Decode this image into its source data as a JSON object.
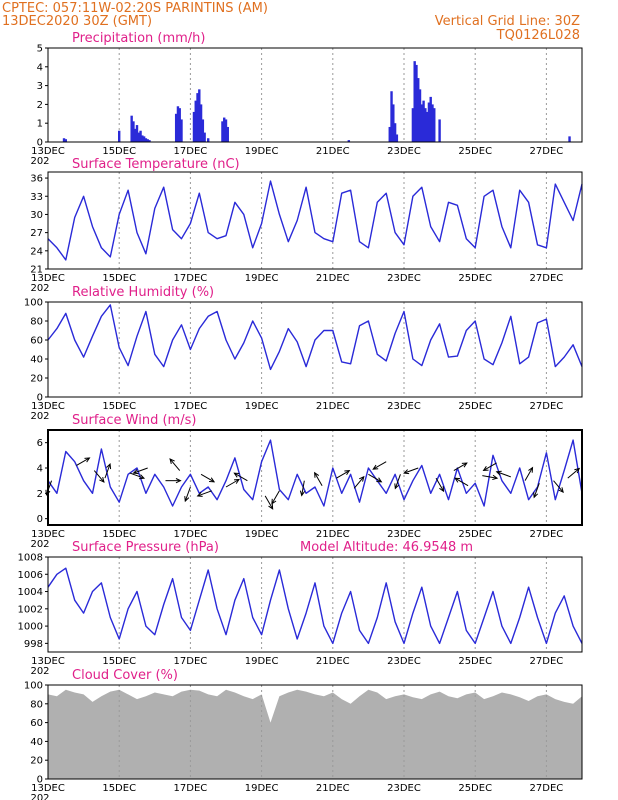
{
  "header": {
    "line1_left": "CPTEC:   057:11W-02:20S   PARINTINS (AM)",
    "line2_left": "13DEC2020 30Z (GMT)",
    "line1_right": "Vertical Grid Line: 30Z",
    "line2_right": "TQ0126L028"
  },
  "model_altitude": "Model Altitude: 46.9548 m",
  "colors": {
    "header": "#e07020",
    "title": "#e0208a",
    "series": "#2a2ad8",
    "cloud": "#b0b0b0",
    "wind_arrow": "#000000"
  },
  "x_axis": {
    "tick_labels": [
      "13DEC",
      "15DEC",
      "17DEC",
      "19DEC",
      "21DEC",
      "23DEC",
      "25DEC",
      "27DEC"
    ],
    "stub_label": "202",
    "range_days": [
      0,
      15.0
    ]
  },
  "chart_data": [
    {
      "type": "bar",
      "title": "Precipitation (mm/h)",
      "ylim": [
        0,
        5
      ],
      "yticks": [
        "0",
        "1",
        "2",
        "3",
        "4",
        "5"
      ],
      "x_days": [
        0.45,
        0.5,
        2.0,
        2.35,
        2.4,
        2.45,
        2.5,
        2.55,
        2.6,
        2.65,
        2.7,
        2.75,
        2.8,
        2.85,
        3.6,
        3.65,
        3.7,
        3.75,
        4.1,
        4.15,
        4.2,
        4.25,
        4.3,
        4.35,
        4.4,
        4.5,
        4.9,
        4.95,
        5.0,
        5.05,
        8.45,
        9.6,
        9.65,
        9.7,
        9.75,
        9.8,
        10.25,
        10.3,
        10.35,
        10.4,
        10.45,
        10.5,
        10.55,
        10.6,
        10.65,
        10.7,
        10.75,
        10.8,
        10.85,
        11.0,
        14.65
      ],
      "values": [
        0.2,
        0.15,
        0.6,
        1.4,
        1.1,
        0.7,
        0.9,
        0.5,
        0.6,
        0.35,
        0.3,
        0.2,
        0.15,
        0.1,
        1.5,
        1.9,
        1.8,
        1.2,
        1.6,
        2.2,
        2.6,
        2.8,
        2.0,
        1.2,
        0.5,
        0.2,
        1.1,
        1.3,
        1.2,
        0.8,
        0.1,
        0.8,
        2.7,
        2.0,
        1.0,
        0.4,
        1.8,
        4.3,
        4.1,
        3.4,
        2.8,
        2.0,
        2.2,
        1.8,
        1.6,
        2.1,
        2.4,
        2.0,
        1.8,
        1.2,
        0.3
      ]
    },
    {
      "type": "line",
      "title": "Surface Temperature (nC)",
      "ylim": [
        21,
        37
      ],
      "yticks": [
        "21",
        "24",
        "27",
        "30",
        "33",
        "36"
      ],
      "x_days": [
        0,
        0.25,
        0.5,
        0.75,
        1.0,
        1.25,
        1.5,
        1.75,
        2.0,
        2.25,
        2.5,
        2.75,
        3.0,
        3.25,
        3.5,
        3.75,
        4.0,
        4.25,
        4.5,
        4.75,
        5.0,
        5.25,
        5.5,
        5.75,
        6.0,
        6.25,
        6.5,
        6.75,
        7.0,
        7.25,
        7.5,
        7.75,
        8.0,
        8.25,
        8.5,
        8.75,
        9.0,
        9.25,
        9.5,
        9.75,
        10.0,
        10.25,
        10.5,
        10.75,
        11.0,
        11.25,
        11.5,
        11.75,
        12.0,
        12.25,
        12.5,
        12.75,
        13.0,
        13.25,
        13.5,
        13.75,
        14.0,
        14.25,
        14.5,
        14.75,
        15.0
      ],
      "values": [
        26.0,
        24.5,
        22.5,
        29.5,
        33.0,
        28.0,
        24.5,
        23.0,
        30.0,
        34.0,
        27.0,
        23.5,
        31.0,
        34.5,
        27.5,
        26.0,
        28.5,
        33.5,
        27.0,
        26.0,
        26.5,
        32.0,
        30.0,
        24.5,
        28.5,
        35.5,
        30.0,
        25.5,
        29.0,
        34.5,
        27.0,
        26.0,
        25.5,
        33.5,
        34.0,
        25.5,
        24.5,
        32.0,
        33.5,
        27.0,
        25.0,
        33.0,
        34.5,
        28.0,
        25.5,
        32.0,
        31.5,
        26.0,
        24.5,
        33.0,
        34.0,
        28.0,
        24.5,
        34.0,
        32.0,
        25.0,
        24.5,
        35.0,
        32.0,
        29.0,
        35.0
      ]
    },
    {
      "type": "line",
      "title": "Relative Humidity (%)",
      "ylim": [
        0,
        100
      ],
      "yticks": [
        "0",
        "20",
        "40",
        "60",
        "80",
        "100"
      ],
      "x_days": [
        0,
        0.25,
        0.5,
        0.75,
        1.0,
        1.25,
        1.5,
        1.75,
        2.0,
        2.25,
        2.5,
        2.75,
        3.0,
        3.25,
        3.5,
        3.75,
        4.0,
        4.25,
        4.5,
        4.75,
        5.0,
        5.25,
        5.5,
        5.75,
        6.0,
        6.25,
        6.5,
        6.75,
        7.0,
        7.25,
        7.5,
        7.75,
        8.0,
        8.25,
        8.5,
        8.75,
        9.0,
        9.25,
        9.5,
        9.75,
        10.0,
        10.25,
        10.5,
        10.75,
        11.0,
        11.25,
        11.5,
        11.75,
        12.0,
        12.25,
        12.5,
        12.75,
        13.0,
        13.25,
        13.5,
        13.75,
        14.0,
        14.25,
        14.5,
        14.75,
        15.0
      ],
      "values": [
        60.0,
        72.0,
        88.0,
        60.0,
        42.0,
        64.0,
        85.0,
        97.0,
        52.0,
        33.0,
        64.0,
        90.0,
        45.0,
        32.0,
        60.0,
        76.0,
        50.0,
        72.0,
        85.0,
        90.0,
        60.0,
        40.0,
        57.0,
        80.0,
        62.0,
        29.0,
        48.0,
        72.0,
        58.0,
        32.0,
        60.0,
        70.0,
        70.0,
        37.0,
        35.0,
        75.0,
        80.0,
        45.0,
        38.0,
        67.0,
        90.0,
        40.0,
        33.0,
        60.0,
        77.0,
        42.0,
        43.0,
        70.0,
        80.0,
        40.0,
        34.0,
        57.0,
        85.0,
        35.0,
        42.0,
        78.0,
        82.0,
        32.0,
        42.0,
        55.0,
        32.0
      ]
    },
    {
      "type": "line",
      "title": "Surface Wind (m/s)",
      "ylim": [
        -0.5,
        7.0
      ],
      "yticks": [
        "0",
        "2",
        "4",
        "6"
      ],
      "x_days": [
        0,
        0.25,
        0.5,
        0.75,
        1.0,
        1.25,
        1.5,
        1.75,
        2.0,
        2.25,
        2.5,
        2.75,
        3.0,
        3.25,
        3.5,
        3.75,
        4.0,
        4.25,
        4.5,
        4.75,
        5.0,
        5.25,
        5.5,
        5.75,
        6.0,
        6.25,
        6.5,
        6.75,
        7.0,
        7.25,
        7.5,
        7.75,
        8.0,
        8.25,
        8.5,
        8.75,
        9.0,
        9.25,
        9.5,
        9.75,
        10.0,
        10.25,
        10.5,
        10.75,
        11.0,
        11.25,
        11.5,
        11.75,
        12.0,
        12.25,
        12.5,
        12.75,
        13.0,
        13.25,
        13.5,
        13.75,
        14.0,
        14.25,
        14.5,
        14.75,
        15.0
      ],
      "values": [
        3.0,
        2.0,
        5.3,
        4.5,
        3.0,
        2.0,
        5.5,
        2.5,
        1.3,
        3.5,
        4.0,
        2.0,
        3.5,
        2.5,
        1.0,
        2.5,
        3.5,
        2.0,
        2.5,
        1.5,
        3.0,
        4.8,
        2.3,
        1.5,
        4.5,
        6.2,
        2.3,
        1.5,
        3.5,
        2.0,
        2.5,
        1.0,
        4.0,
        2.0,
        3.5,
        1.3,
        4.0,
        3.0,
        2.0,
        3.5,
        1.5,
        3.0,
        4.2,
        2.0,
        3.5,
        1.5,
        4.0,
        2.0,
        2.8,
        1.0,
        5.0,
        3.0,
        2.0,
        4.0,
        1.5,
        2.5,
        5.2,
        1.5,
        3.8,
        6.2,
        2.0
      ],
      "arrows_x_days": [
        0.1,
        0.8,
        1.3,
        1.6,
        2.3,
        2.8,
        3.3,
        3.7,
        4.0,
        4.3,
        4.6,
        5.0,
        5.6,
        6.1,
        6.5,
        7.2,
        7.7,
        8.1,
        8.6,
        9.0,
        9.5,
        9.9,
        10.4,
        10.9,
        11.4,
        11.8,
        12.2,
        12.6,
        13.0,
        13.4,
        13.8,
        14.2,
        14.6
      ],
      "arrows_speed": [
        3.0,
        4.2,
        3.8,
        3.2,
        3.6,
        4.0,
        3.0,
        3.8,
        2.5,
        3.5,
        2.2,
        2.5,
        3.0,
        1.8,
        2.2,
        3.0,
        2.6,
        3.2,
        2.4,
        3.5,
        4.5,
        3.5,
        4.0,
        3.2,
        3.8,
        2.6,
        3.4,
        4.4,
        3.3,
        3.0,
        2.8,
        3.0,
        3.2
      ],
      "arrows_dir_deg": [
        200,
        60,
        140,
        20,
        110,
        250,
        90,
        320,
        200,
        120,
        250,
        60,
        300,
        150,
        210,
        190,
        330,
        60,
        40,
        120,
        240,
        200,
        250,
        150,
        60,
        300,
        100,
        240,
        290,
        30,
        200,
        140,
        50
      ]
    },
    {
      "type": "line",
      "title": "Surface Pressure (hPa)",
      "ylim": [
        997,
        1008
      ],
      "yticks": [
        "998",
        "1000",
        "1002",
        "1004",
        "1006",
        "1008"
      ],
      "x_days": [
        0,
        0.25,
        0.5,
        0.75,
        1.0,
        1.25,
        1.5,
        1.75,
        2.0,
        2.25,
        2.5,
        2.75,
        3.0,
        3.25,
        3.5,
        3.75,
        4.0,
        4.25,
        4.5,
        4.75,
        5.0,
        5.25,
        5.5,
        5.75,
        6.0,
        6.25,
        6.5,
        6.75,
        7.0,
        7.25,
        7.5,
        7.75,
        8.0,
        8.25,
        8.5,
        8.75,
        9.0,
        9.25,
        9.5,
        9.75,
        10.0,
        10.25,
        10.5,
        10.75,
        11.0,
        11.25,
        11.5,
        11.75,
        12.0,
        12.25,
        12.5,
        12.75,
        13.0,
        13.25,
        13.5,
        13.75,
        14.0,
        14.25,
        14.5,
        14.75,
        15.0
      ],
      "values": [
        1004.5,
        1006.0,
        1006.7,
        1003.0,
        1001.5,
        1004.0,
        1005.0,
        1001.0,
        998.5,
        1002.0,
        1004.0,
        1000.0,
        999.0,
        1002.5,
        1005.5,
        1001.0,
        999.5,
        1003.0,
        1006.5,
        1002.0,
        999.0,
        1003.0,
        1005.5,
        1001.0,
        999.0,
        1003.0,
        1006.5,
        1002.0,
        998.5,
        1001.5,
        1005.0,
        1000.0,
        998.0,
        1001.5,
        1004.0,
        999.5,
        998.0,
        1001.0,
        1005.0,
        1000.5,
        998.0,
        1001.5,
        1004.5,
        1000.0,
        998.0,
        1001.0,
        1004.0,
        999.5,
        998.0,
        1001.0,
        1004.0,
        1000.0,
        998.0,
        1001.0,
        1004.5,
        1001.0,
        998.0,
        1001.5,
        1003.5,
        1000.0,
        998.0
      ]
    },
    {
      "type": "area",
      "title": "Cloud Cover (%)",
      "ylim": [
        0,
        100
      ],
      "yticks": [
        "0",
        "20",
        "40",
        "60",
        "80",
        "100"
      ],
      "x_days": [
        0,
        0.25,
        0.5,
        0.75,
        1.0,
        1.25,
        1.5,
        1.75,
        2.0,
        2.25,
        2.5,
        2.75,
        3.0,
        3.25,
        3.5,
        3.75,
        4.0,
        4.25,
        4.5,
        4.75,
        5.0,
        5.25,
        5.5,
        5.75,
        6.0,
        6.25,
        6.5,
        6.75,
        7.0,
        7.25,
        7.5,
        7.75,
        8.0,
        8.25,
        8.5,
        8.75,
        9.0,
        9.25,
        9.5,
        9.75,
        10.0,
        10.25,
        10.5,
        10.75,
        11.0,
        11.25,
        11.5,
        11.75,
        12.0,
        12.25,
        12.5,
        12.75,
        13.0,
        13.25,
        13.5,
        13.75,
        14.0,
        14.25,
        14.5,
        14.75,
        15.0
      ],
      "values": [
        90,
        88,
        95,
        92,
        90,
        82,
        88,
        93,
        95,
        90,
        85,
        88,
        92,
        90,
        88,
        93,
        95,
        94,
        90,
        88,
        95,
        92,
        88,
        85,
        90,
        60,
        88,
        92,
        95,
        93,
        90,
        88,
        92,
        85,
        80,
        88,
        95,
        92,
        85,
        88,
        90,
        87,
        85,
        90,
        93,
        88,
        86,
        90,
        92,
        85,
        88,
        92,
        90,
        87,
        83,
        88,
        90,
        85,
        82,
        80,
        88
      ]
    }
  ]
}
